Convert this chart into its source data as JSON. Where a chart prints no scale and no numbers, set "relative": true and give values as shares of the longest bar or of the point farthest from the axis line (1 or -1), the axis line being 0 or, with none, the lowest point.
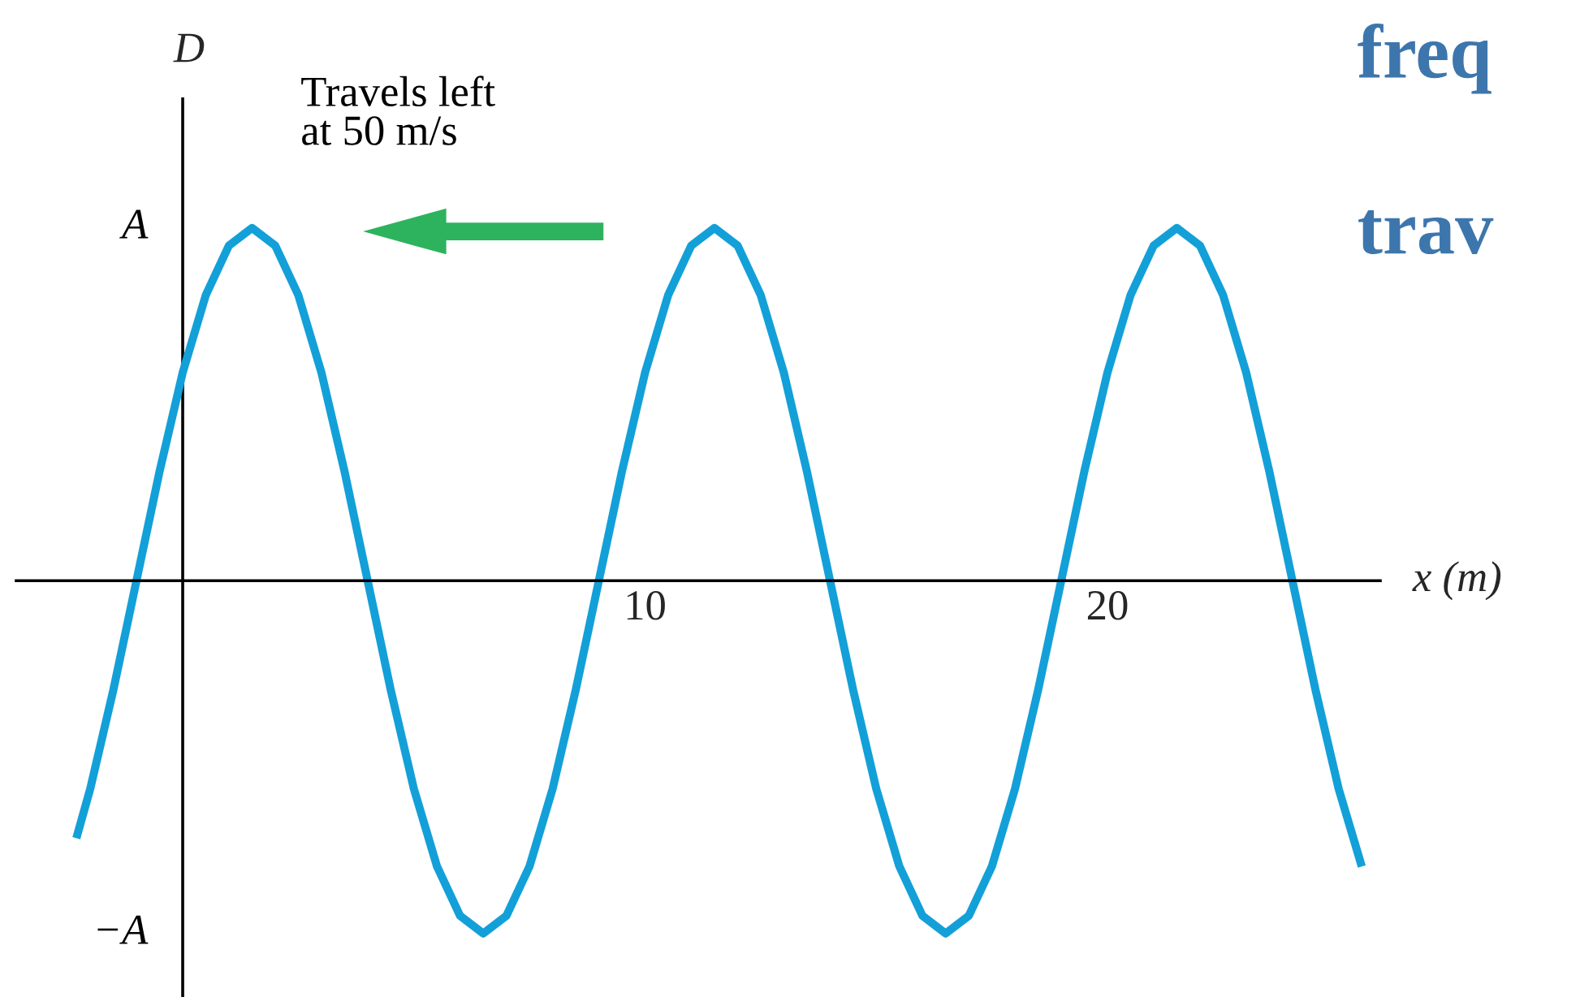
{
  "chart_data": {
    "type": "line",
    "xlabel": "x (m)",
    "ylabel": "D",
    "annotations": [
      "Travels left\nat 50 m/s",
      "freq",
      "trav",
      "A",
      "−A"
    ],
    "relative": true,
    "xlim": [
      -3.6,
      25.9
    ],
    "xticks": [
      10,
      20
    ],
    "ref_lines": [
      {
        "axis": "x",
        "value": 0,
        "color": "#000000"
      }
    ],
    "x": [
      -2.3,
      -2,
      -1.5,
      -1,
      -0.5,
      0,
      0.5,
      1,
      1.5,
      2,
      2.5,
      3,
      3.5,
      4,
      4.5,
      5,
      5.5,
      6,
      6.5,
      7,
      7.5,
      8,
      8.5,
      9,
      9.5,
      10,
      10.5,
      11,
      11.5,
      12,
      12.5,
      13,
      13.5,
      14,
      14.5,
      15,
      15.5,
      16,
      16.5,
      17,
      17.5,
      18,
      18.5,
      19,
      19.5,
      20,
      20.5,
      21,
      21.5,
      22,
      22.5,
      23,
      23.5,
      24,
      24.5,
      25,
      25.5
    ],
    "series": [
      {
        "color": "#13a0d8",
        "values": [
          -0.73,
          -0.59,
          -0.31,
          0,
          0.31,
          0.59,
          0.81,
          0.95,
          1,
          0.95,
          0.81,
          0.59,
          0.31,
          0,
          -0.31,
          -0.59,
          -0.81,
          -0.95,
          -1,
          -0.95,
          -0.81,
          -0.59,
          -0.31,
          0,
          0.31,
          0.59,
          0.81,
          0.95,
          1,
          0.95,
          0.81,
          0.59,
          0.31,
          0,
          -0.31,
          -0.59,
          -0.81,
          -0.95,
          -1,
          -0.95,
          -0.81,
          -0.59,
          -0.31,
          0,
          0.31,
          0.59,
          0.81,
          0.95,
          1,
          0.95,
          0.81,
          0.59,
          0.31,
          0,
          -0.31,
          -0.59,
          -0.81
        ]
      }
    ],
    "line_style": "solid",
    "marker": "none"
  }
}
